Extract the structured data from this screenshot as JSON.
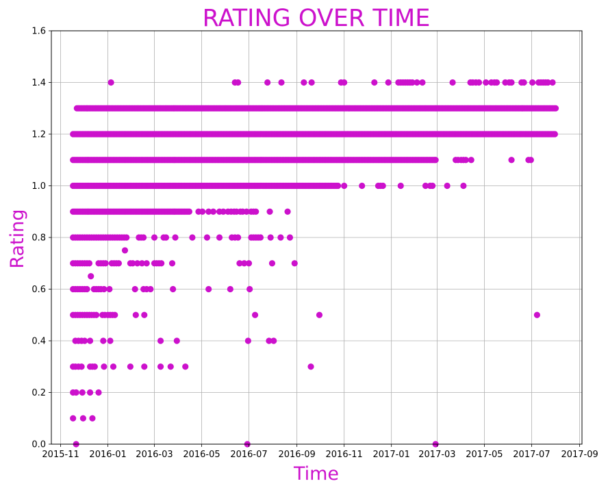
{
  "colors": {
    "accent": "#cc11cc",
    "grid": "#b0b0b0",
    "axis": "#000000",
    "background": "#ffffff"
  },
  "chart_data": {
    "type": "scatter",
    "title": "RATING OVER TIME",
    "xlabel": "Time",
    "ylabel": "Rating",
    "grid": true,
    "legend": "none",
    "xlim": [
      "2015-10-20",
      "2017-09-04"
    ],
    "ylim": [
      0.0,
      1.6
    ],
    "x_ticks": [
      "2015-11",
      "2016-01",
      "2016-03",
      "2016-05",
      "2016-07",
      "2016-09",
      "2016-11",
      "2017-01",
      "2017-03",
      "2017-05",
      "2017-07",
      "2017-09"
    ],
    "x_tick_dates": [
      "2015-11-01",
      "2016-01-01",
      "2016-03-01",
      "2016-05-01",
      "2016-07-01",
      "2016-09-01",
      "2016-11-01",
      "2017-01-01",
      "2017-03-01",
      "2017-05-01",
      "2017-07-01",
      "2017-09-01"
    ],
    "y_ticks": [
      "0.0",
      "0.2",
      "0.4",
      "0.6",
      "0.8",
      "1.0",
      "1.2",
      "1.4",
      "1.6"
    ],
    "series": [
      {
        "rows": [
          {
            "y": 1.4,
            "x": [
              "2016-01-05",
              "2016-06-13",
              "2016-06-17",
              "2016-07-25",
              "2016-08-12",
              "2016-09-10",
              "2016-09-20",
              "2016-10-28",
              "2016-11-01",
              "2016-12-10",
              "2016-12-28",
              "2017-01-10",
              "2017-01-13",
              "2017-01-16",
              "2017-01-19",
              "2017-01-22",
              "2017-01-25",
              "2017-01-28",
              "2017-02-03",
              "2017-02-10",
              "2017-03-21",
              "2017-04-13",
              "2017-04-16",
              "2017-04-20",
              "2017-04-24",
              "2017-05-03",
              "2017-05-10",
              "2017-05-14",
              "2017-05-17",
              "2017-05-28",
              "2017-06-02",
              "2017-06-05",
              "2017-06-18",
              "2017-06-21",
              "2017-07-02",
              "2017-07-10",
              "2017-07-13",
              "2017-07-16",
              "2017-07-19",
              "2017-07-22",
              "2017-07-28"
            ]
          },
          {
            "y": 1.3,
            "x_range": [
              "2015-11-22",
              "2017-08-01"
            ]
          },
          {
            "y": 1.2,
            "x_range": [
              "2015-11-17",
              "2017-08-01"
            ]
          },
          {
            "y": 1.1,
            "x_range": [
              "2015-11-17",
              "2017-02-28"
            ],
            "x": [
              "2017-03-25",
              "2017-03-28",
              "2017-04-01",
              "2017-04-04",
              "2017-04-07",
              "2017-04-14",
              "2017-06-05",
              "2017-06-27",
              "2017-06-30"
            ]
          },
          {
            "y": 1.0,
            "x_range": [
              "2015-11-17",
              "2016-10-25"
            ],
            "x": [
              "2016-11-01",
              "2016-11-24",
              "2016-12-15",
              "2016-12-18",
              "2016-12-21",
              "2017-01-13",
              "2017-02-14",
              "2017-02-20",
              "2017-02-23",
              "2017-03-14",
              "2017-04-04"
            ]
          },
          {
            "y": 0.9,
            "x_range": [
              "2015-11-17",
              "2016-04-15"
            ],
            "x": [
              "2016-04-27",
              "2016-05-02",
              "2016-05-10",
              "2016-05-16",
              "2016-05-24",
              "2016-05-29",
              "2016-06-04",
              "2016-06-08",
              "2016-06-12",
              "2016-06-15",
              "2016-06-20",
              "2016-06-23",
              "2016-06-28",
              "2016-07-04",
              "2016-07-07",
              "2016-07-10",
              "2016-07-28",
              "2016-08-20"
            ]
          },
          {
            "y": 0.8,
            "x": [
              "2015-11-17",
              "2015-11-20",
              "2015-11-23",
              "2015-11-26",
              "2015-11-29",
              "2015-12-02",
              "2015-12-05",
              "2015-12-08",
              "2015-12-11",
              "2015-12-14",
              "2015-12-17",
              "2015-12-20",
              "2015-12-23",
              "2015-12-26",
              "2015-12-29",
              "2016-01-01",
              "2016-01-04",
              "2016-01-07",
              "2016-01-10",
              "2016-01-13",
              "2016-01-16",
              "2016-01-19",
              "2016-01-22",
              "2016-01-25",
              "2016-02-10",
              "2016-02-13",
              "2016-02-16",
              "2016-03-01",
              "2016-03-13",
              "2016-03-16",
              "2016-03-28",
              "2016-04-19",
              "2016-05-08",
              "2016-05-24",
              "2016-06-09",
              "2016-06-13",
              "2016-06-17",
              "2016-07-04",
              "2016-07-07",
              "2016-07-10",
              "2016-07-13",
              "2016-07-16",
              "2016-07-29",
              "2016-08-11",
              "2016-08-23"
            ]
          },
          {
            "y": 0.75,
            "x": [
              "2016-01-23"
            ]
          },
          {
            "y": 0.7,
            "x": [
              "2015-11-17",
              "2015-11-20",
              "2015-11-23",
              "2015-11-26",
              "2015-11-29",
              "2015-12-02",
              "2015-12-05",
              "2015-12-08",
              "2015-12-20",
              "2015-12-23",
              "2015-12-26",
              "2015-12-29",
              "2016-01-06",
              "2016-01-09",
              "2016-01-12",
              "2016-01-15",
              "2016-01-30",
              "2016-02-02",
              "2016-02-08",
              "2016-02-14",
              "2016-02-20",
              "2016-03-01",
              "2016-03-04",
              "2016-03-07",
              "2016-03-10",
              "2016-03-24",
              "2016-06-19",
              "2016-06-25",
              "2016-07-01",
              "2016-07-31",
              "2016-08-29"
            ]
          },
          {
            "y": 0.65,
            "x": [
              "2015-12-10"
            ]
          },
          {
            "y": 0.6,
            "x": [
              "2015-11-17",
              "2015-11-20",
              "2015-11-23",
              "2015-11-26",
              "2015-11-29",
              "2015-12-02",
              "2015-12-05",
              "2015-12-14",
              "2015-12-17",
              "2015-12-20",
              "2015-12-23",
              "2015-12-27",
              "2016-01-03",
              "2016-02-05",
              "2016-02-16",
              "2016-02-20",
              "2016-02-25",
              "2016-03-25",
              "2016-05-10",
              "2016-06-07",
              "2016-07-02"
            ]
          },
          {
            "y": 0.5,
            "x": [
              "2015-11-17",
              "2015-11-20",
              "2015-11-23",
              "2015-11-26",
              "2015-11-29",
              "2015-12-02",
              "2015-12-05",
              "2015-12-08",
              "2015-12-11",
              "2015-12-14",
              "2015-12-17",
              "2015-12-25",
              "2015-12-28",
              "2016-01-01",
              "2016-01-04",
              "2016-01-07",
              "2016-01-10",
              "2016-02-06",
              "2016-02-17",
              "2016-07-09",
              "2016-09-30",
              "2017-07-08"
            ]
          },
          {
            "y": 0.4,
            "x": [
              "2015-11-20",
              "2015-11-24",
              "2015-11-28",
              "2015-12-02",
              "2015-12-09",
              "2015-12-26",
              "2016-01-04",
              "2016-03-09",
              "2016-03-30",
              "2016-06-30",
              "2016-07-27",
              "2016-08-02"
            ]
          },
          {
            "y": 0.3,
            "x": [
              "2015-11-17",
              "2015-11-20",
              "2015-11-24",
              "2015-11-28",
              "2015-12-09",
              "2015-12-12",
              "2015-12-15",
              "2015-12-27",
              "2016-01-08",
              "2016-01-30",
              "2016-02-17",
              "2016-03-09",
              "2016-03-22",
              "2016-04-10",
              "2016-09-19"
            ]
          },
          {
            "y": 0.2,
            "x": [
              "2015-11-17",
              "2015-11-21",
              "2015-11-29",
              "2015-12-09",
              "2015-12-20"
            ]
          },
          {
            "y": 0.1,
            "x": [
              "2015-11-17",
              "2015-11-30",
              "2015-12-12"
            ]
          },
          {
            "y": 0.0,
            "x": [
              "2015-11-21",
              "2016-06-29",
              "2017-02-27"
            ]
          }
        ]
      }
    ]
  }
}
